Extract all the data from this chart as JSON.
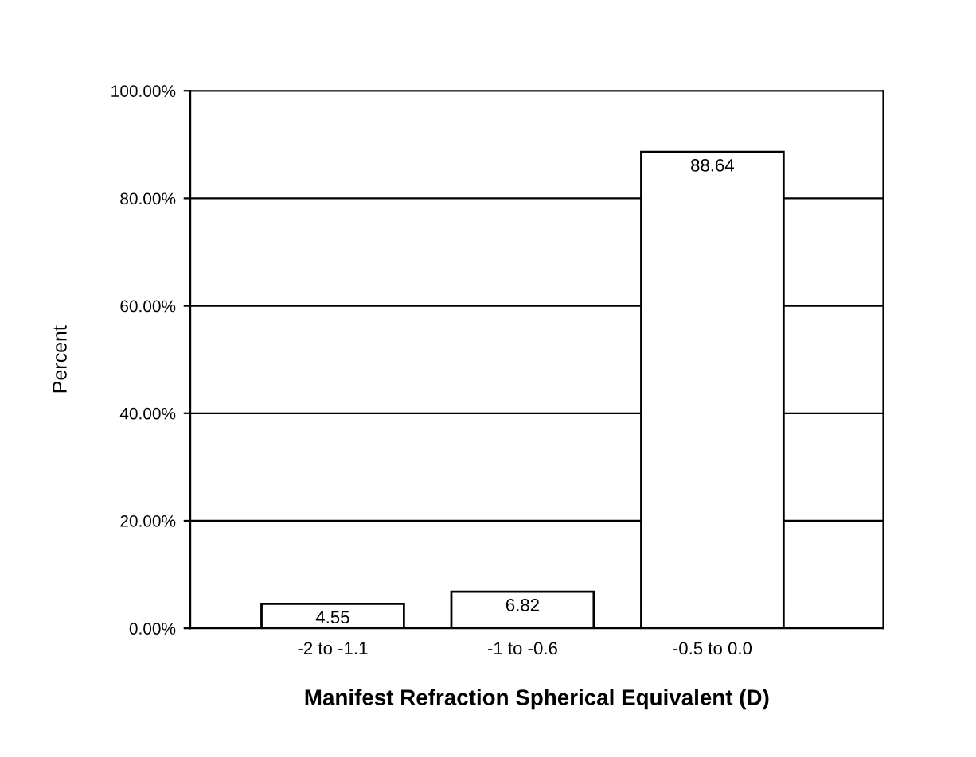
{
  "chart_data": {
    "type": "bar",
    "xlabel": "Manifest Refraction Spherical Equivalent (D)",
    "ylabel": "Percent",
    "categories": [
      "-2 to -1.1",
      "-1 to -0.6",
      "-0.5 to 0.0"
    ],
    "values": [
      4.55,
      6.82,
      88.64
    ],
    "color": "#ffffff",
    "data_labels": true,
    "ylim": [
      0,
      100
    ],
    "yticks": [
      {
        "value": 0,
        "label": "0.00%"
      },
      {
        "value": 20,
        "label": "20.00%"
      },
      {
        "value": 40,
        "label": "40.00%"
      },
      {
        "value": 60,
        "label": "60.00%"
      },
      {
        "value": 80,
        "label": "80.00%"
      },
      {
        "value": 100,
        "label": "100.00%"
      }
    ],
    "grid": "y",
    "legend": false
  }
}
